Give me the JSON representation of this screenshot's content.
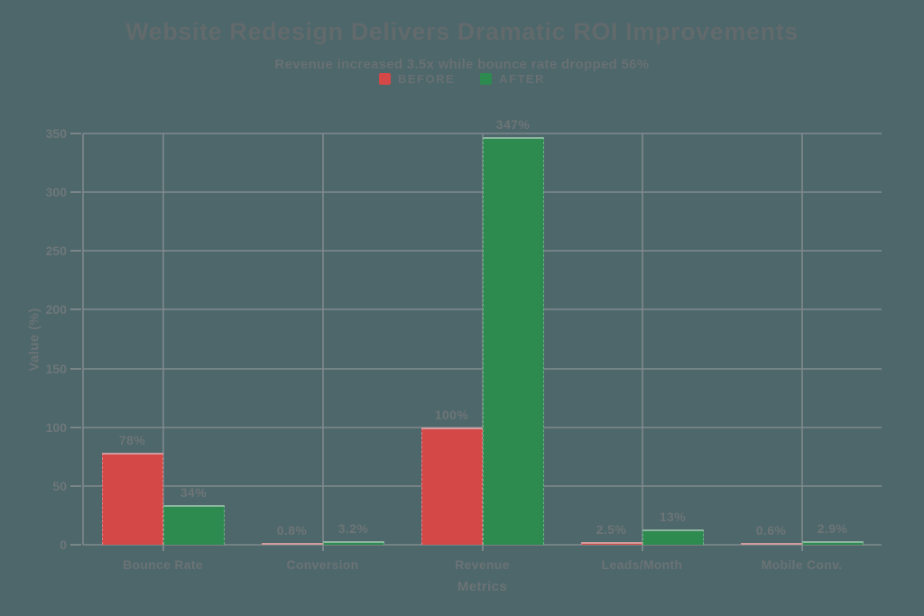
{
  "chart_data": {
    "type": "bar",
    "title": "Website Redesign Delivers Dramatic ROI Improvements",
    "subtitle": "Revenue increased 3.5x while bounce rate dropped 56%",
    "xlabel": "Metrics",
    "ylabel": "Value (%)",
    "categories": [
      "Bounce Rate",
      "Conversion",
      "Revenue",
      "Leads/Month",
      "Mobile Conv."
    ],
    "series": [
      {
        "name": "BEFORE",
        "color": "#d54848",
        "values": [
          78,
          0.8,
          100,
          2.5,
          0.6
        ],
        "labels": [
          "78%",
          "0.8%",
          "100%",
          "2.5%",
          "0.6%"
        ]
      },
      {
        "name": "AFTER",
        "color": "#2e8b50",
        "values": [
          34,
          3.2,
          347,
          13,
          2.9
        ],
        "labels": [
          "34%",
          "3.2%",
          "347%",
          "13%",
          "2.9%"
        ]
      }
    ],
    "yticks": [
      0,
      50,
      100,
      150,
      200,
      250,
      300,
      350
    ],
    "ylim": [
      0,
      350
    ],
    "grid": true,
    "legend_position": "top",
    "colors": {
      "background": "#4d676b",
      "grid": "#7f898c",
      "text": "#6b7375",
      "title": "#626a6c",
      "before": "#d54848",
      "after": "#2e8b50"
    }
  }
}
